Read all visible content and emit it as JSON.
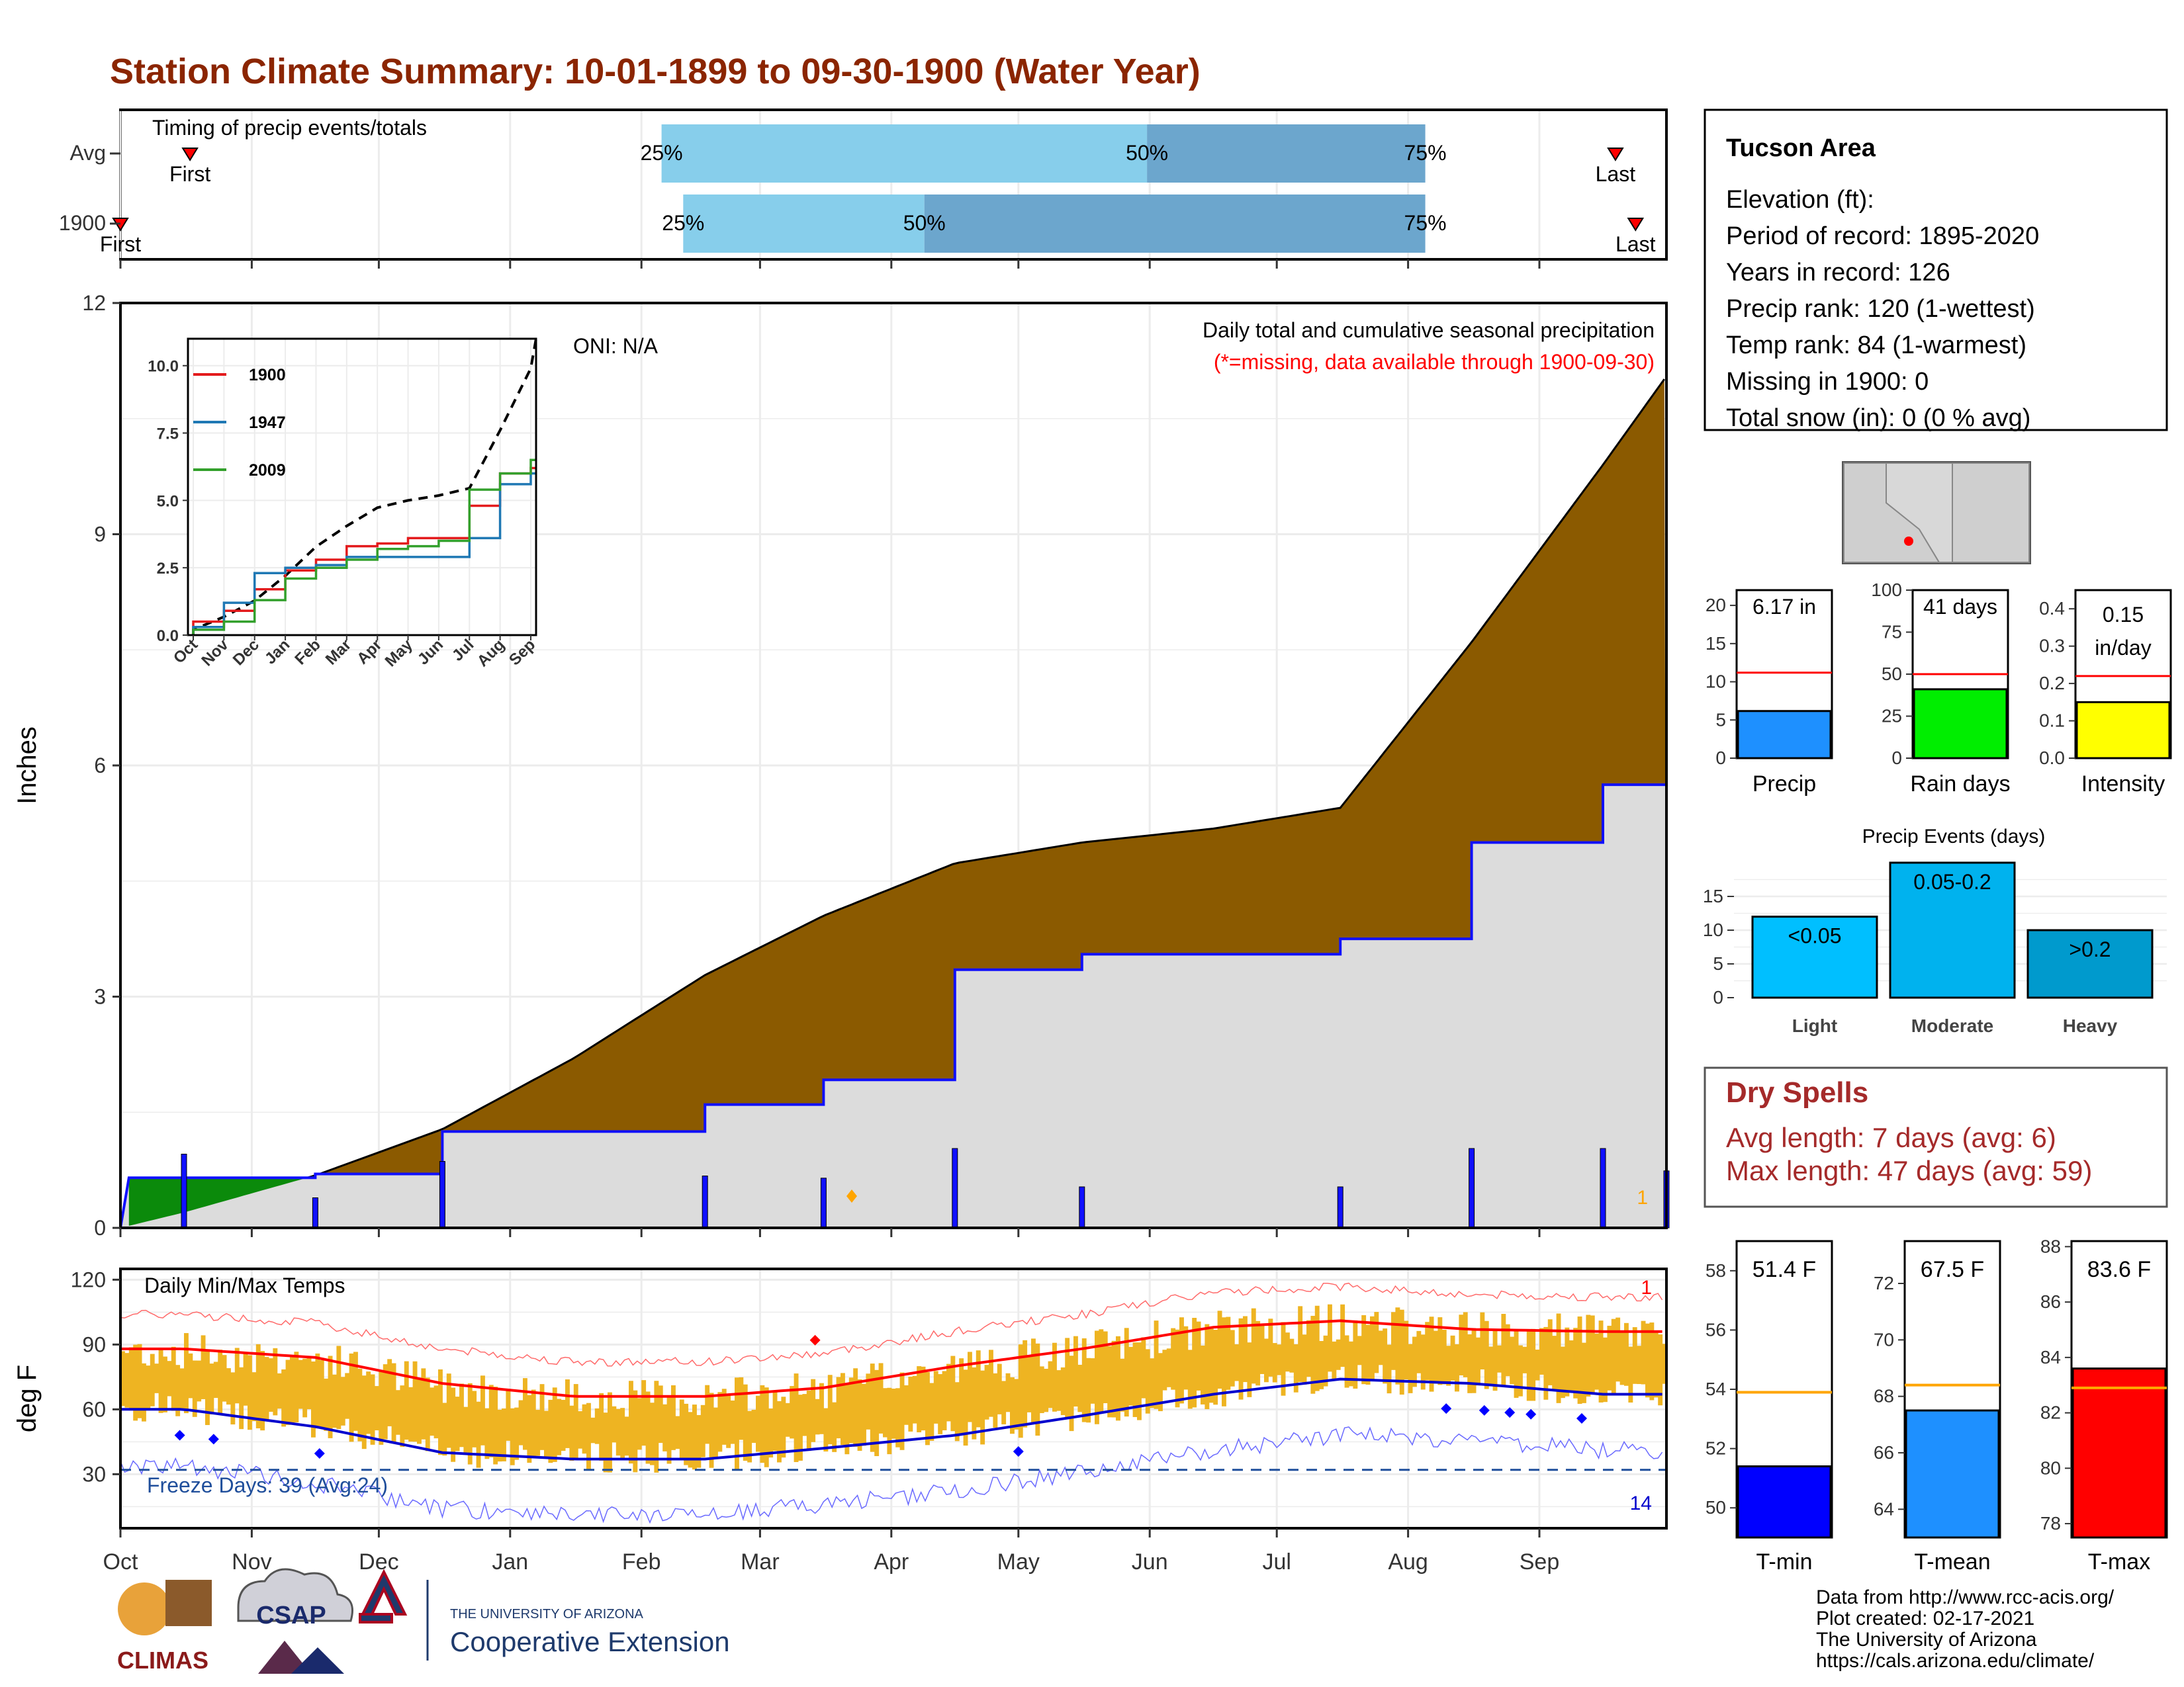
{
  "title": "Station Climate Summary: 10-01-1899 to 09-30-1900 (Water Year)",
  "timing": {
    "label": "Timing of precip events/totals",
    "rows": [
      "Avg",
      "1900"
    ],
    "first_label": "First",
    "last_label": "Last",
    "avg": {
      "first_frac": 0.045,
      "p25": 0.35,
      "p50": 0.664,
      "p75": 0.844,
      "last_frac": 0.967
    },
    "year": {
      "first_frac": 0.0,
      "p25": 0.364,
      "p50": 0.52,
      "p75": 0.844,
      "last_frac": 0.98
    },
    "pct_labels": [
      "25%",
      "50%",
      "75%"
    ]
  },
  "station": {
    "name": "Tucson Area",
    "lines": [
      "Elevation (ft):",
      "Period of record: 1895-2020",
      "Years in record: 126",
      "Precip rank: 120 (1-wettest)",
      "Temp rank: 84 (1-warmest)",
      "Missing in 1900: 0",
      "Total snow (in): 0 (0 % avg)"
    ]
  },
  "precip_panel": {
    "ylabel": "Inches",
    "note1": "Daily total and cumulative seasonal precipitation",
    "note2": "(*=missing, data available through 1900-09-30)",
    "oni": "ONI: N/A",
    "count_label": "1",
    "yticks": [
      "0",
      "3",
      "6",
      "9",
      "12"
    ]
  },
  "months": [
    "Oct",
    "Nov",
    "Dec",
    "Jan",
    "Feb",
    "Mar",
    "Apr",
    "May",
    "Jun",
    "Jul",
    "Aug",
    "Sep"
  ],
  "inset": {
    "legend": [
      "1900",
      "1947",
      "2009"
    ],
    "yticks": [
      "0.0",
      "2.5",
      "5.0",
      "7.5",
      "10.0"
    ]
  },
  "bars_small": {
    "precip": {
      "value_label": "6.17 in",
      "xlabel": "Precip",
      "yticks": [
        "0",
        "5",
        "10",
        "15",
        "20"
      ]
    },
    "raindays": {
      "value_label": "41 days",
      "xlabel": "Rain days",
      "yticks": [
        "0",
        "25",
        "50",
        "75",
        "100"
      ]
    },
    "intensity": {
      "value_label1": "0.15",
      "value_label2": "in/day",
      "xlabel": "Intensity",
      "yticks": [
        "0.0",
        "0.1",
        "0.2",
        "0.3",
        "0.4"
      ]
    }
  },
  "events": {
    "title": "Precip Events (days)",
    "categories": [
      "Light",
      "Moderate",
      "Heavy"
    ],
    "labels": [
      "<0.05",
      "0.05-0.2",
      ">0.2"
    ],
    "yticks": [
      "0",
      "5",
      "10",
      "15"
    ]
  },
  "dry": {
    "title": "Dry Spells",
    "line1": "Avg length: 7 days (avg: 6)",
    "line2": "Max length: 47 days (avg: 59)"
  },
  "temp_panel": {
    "ylabel": "deg F",
    "title": "Daily Min/Max Temps",
    "freeze": "Freeze Days: 39 (Avg:24)",
    "top_count": "1",
    "bottom_count": "14",
    "yticks": [
      "30",
      "60",
      "90",
      "120"
    ]
  },
  "temp_bars": {
    "tmin": {
      "value_label": "51.4 F",
      "xlabel": "T-min",
      "yticks": [
        "50",
        "52",
        "54",
        "56",
        "58"
      ]
    },
    "tmean": {
      "value_label": "67.5 F",
      "xlabel": "T-mean",
      "yticks": [
        "64",
        "66",
        "68",
        "70",
        "72"
      ]
    },
    "tmax": {
      "value_label": "83.6 F",
      "xlabel": "T-max",
      "yticks": [
        "78",
        "80",
        "82",
        "84",
        "86",
        "88"
      ]
    }
  },
  "footer": {
    "lines": [
      "Data from http://www.rcc-acis.org/",
      "Plot created: 02-17-2021",
      "The University of Arizona",
      "https://cals.arizona.edu/climate/"
    ],
    "climas": "CLIMAS",
    "csap": "CSAP",
    "ua_small": "THE UNIVERSITY OF ARIZONA",
    "ua_big": "Cooperative Extension"
  },
  "colors": {
    "title": "#8b2500",
    "avg_cum": "#8b5a00",
    "obs_cum": "#dcdcdc",
    "obs_line": "#1010ff",
    "light_bar": "#87ceeb",
    "dark_bar": "#6ca6cd",
    "temp_bar": "#eeb422",
    "dry": "#a52a2a"
  },
  "chart_data": [
    {
      "type": "area",
      "title": "Daily total and cumulative seasonal precipitation",
      "ylabel": "Inches",
      "ylim": [
        0,
        12
      ],
      "x": [
        "Oct",
        "Nov",
        "Dec",
        "Jan",
        "Feb",
        "Mar",
        "Apr",
        "May",
        "Jun",
        "Jul",
        "Aug",
        "Sep"
      ],
      "series": [
        {
          "values": [
            0.2,
            0.68,
            1.28,
            2.2,
            3.28,
            4.05,
            4.73,
            5.0,
            5.18,
            5.45,
            7.6,
            9.9
          ]
        },
        {
          "name": "1900",
          "values": [
            0.65,
            0.7,
            1.25,
            1.25,
            1.6,
            1.92,
            3.35,
            3.55,
            3.55,
            3.75,
            5.0,
            5.75
          ]
        }
      ],
      "final": {
        "avg": 11.05,
        "observed": 6.17
      }
    },
    {
      "type": "bar",
      "title": "Precip Events (days)",
      "categories": [
        "Light",
        "Moderate",
        "Heavy"
      ],
      "values": [
        12,
        20,
        10
      ],
      "ylim": [
        0,
        20
      ]
    },
    {
      "type": "bar",
      "categories": [
        "Precip",
        "Rain days",
        "Intensity"
      ],
      "values": [
        6.17,
        41,
        0.15
      ],
      "averages": [
        11.2,
        50,
        0.22
      ],
      "ylims": [
        [
          0,
          22
        ],
        [
          0,
          100
        ],
        [
          0,
          0.45
        ]
      ]
    },
    {
      "type": "bar",
      "categories": [
        "T-min",
        "T-mean",
        "T-max"
      ],
      "values": [
        51.4,
        67.5,
        83.6
      ],
      "averages": [
        53.9,
        68.4,
        82.9
      ],
      "ylims": [
        [
          49,
          59
        ],
        [
          63,
          73.5
        ],
        [
          77.5,
          88.2
        ]
      ]
    },
    {
      "type": "line",
      "title": "Daily Min/Max Temps",
      "ylabel": "deg F",
      "ylim": [
        5,
        125
      ],
      "x": [
        "Oct",
        "Nov",
        "Dec",
        "Jan",
        "Feb",
        "Mar",
        "Apr",
        "May",
        "Jun",
        "Jul",
        "Aug",
        "Sep"
      ],
      "series": [
        {
          "values": [
            88,
            84,
            72,
            66,
            66,
            70,
            80,
            88,
            98,
            101,
            97,
            96
          ]
        },
        {
          "values": [
            60,
            52,
            40,
            37,
            37,
            42,
            48,
            57,
            67,
            74,
            72,
            67
          ]
        }
      ],
      "freeze_line": 32
    },
    {
      "type": "line",
      "ylim": [
        0,
        11
      ],
      "x": [
        "Oct",
        "Nov",
        "Dec",
        "Jan",
        "Feb",
        "Mar",
        "Apr",
        "May",
        "Jun",
        "Jul",
        "Aug",
        "Sep"
      ],
      "series": [
        {
          "name": "1900",
          "values": [
            0.5,
            0.9,
            1.7,
            2.4,
            2.8,
            3.3,
            3.4,
            3.6,
            3.6,
            4.8,
            6.0,
            6.2
          ]
        },
        {
          "name": "1947",
          "values": [
            0.3,
            1.2,
            2.3,
            2.5,
            2.6,
            2.9,
            2.9,
            2.9,
            2.9,
            3.6,
            5.6,
            6.0
          ]
        },
        {
          "name": "2009",
          "values": [
            0.2,
            0.5,
            1.3,
            2.1,
            2.5,
            2.8,
            3.2,
            3.3,
            3.5,
            5.4,
            6.0,
            6.5
          ]
        }
      ]
    }
  ]
}
